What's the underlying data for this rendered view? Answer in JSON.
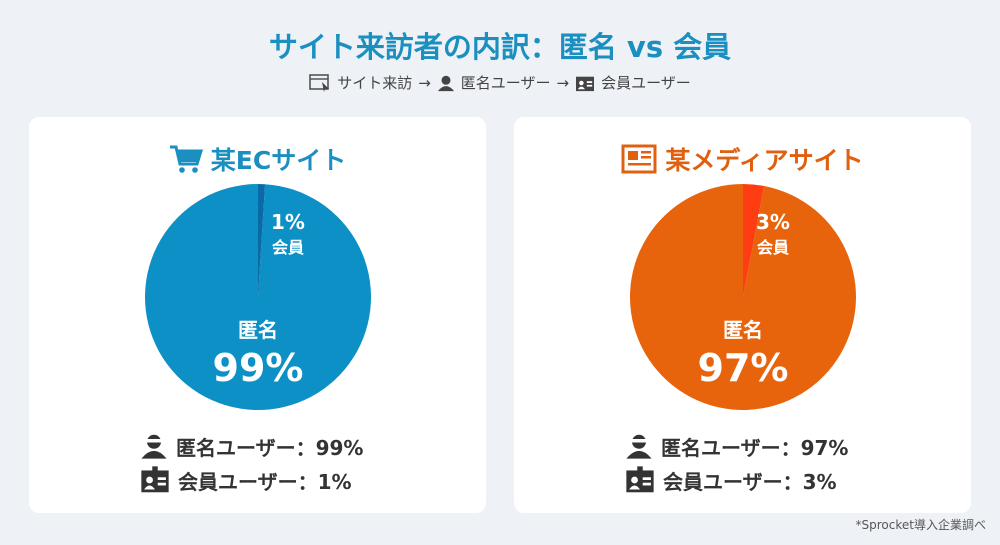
{
  "title": "サイト来訪者の内訳：匿名 vs 会員",
  "flow": {
    "step1": "サイト来訪",
    "arrow": "→",
    "step2": "匿名ユーザー",
    "step3": "会員ユーザー"
  },
  "chart_data": [
    {
      "type": "pie",
      "title": "某ECサイト",
      "icon": "cart-icon",
      "categories": [
        "匿名",
        "会員"
      ],
      "values": [
        99,
        1
      ],
      "labels": [
        "99%",
        "1%"
      ],
      "colors": [
        "#0d90c5",
        "#0a6aa8"
      ],
      "title_color": "#1a8fc0",
      "legend": [
        {
          "text": "匿名ユーザー：99%",
          "icon": "anonymous-user-icon"
        },
        {
          "text": "会員ユーザー：1%",
          "icon": "member-card-icon"
        }
      ]
    },
    {
      "type": "pie",
      "title": "某メディアサイト",
      "icon": "newspaper-icon",
      "categories": [
        "匿名",
        "会員"
      ],
      "values": [
        97,
        3
      ],
      "labels": [
        "97%",
        "3%"
      ],
      "colors": [
        "#e8640c",
        "#ff3d12"
      ],
      "title_color": "#e06010",
      "legend": [
        {
          "text": "匿名ユーザー：97%",
          "icon": "anonymous-user-icon"
        },
        {
          "text": "会員ユーザー：3%",
          "icon": "member-card-icon"
        }
      ]
    }
  ],
  "footnote": "*Sprocket導入企業調べ"
}
